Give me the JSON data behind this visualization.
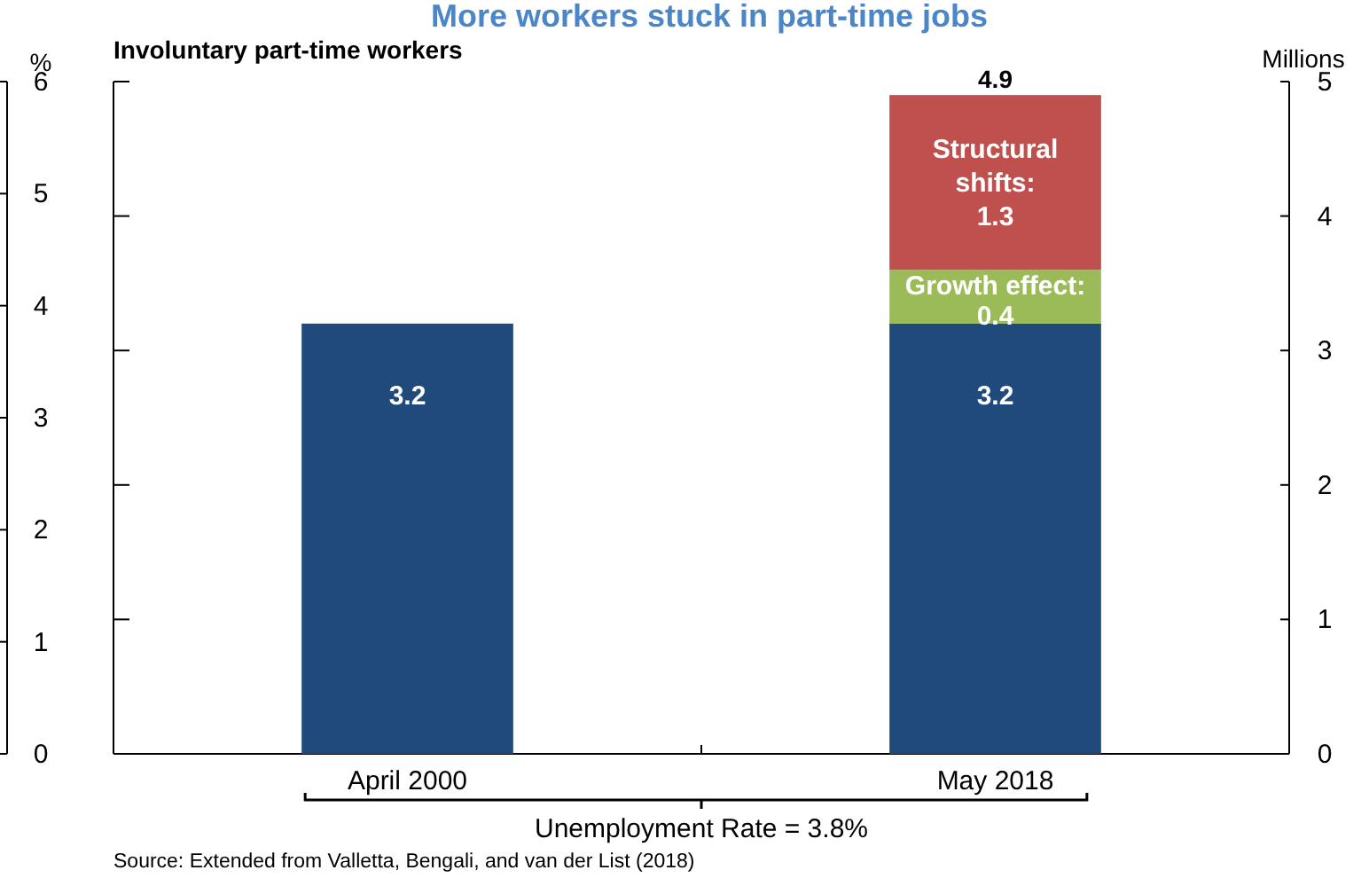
{
  "chart_data": {
    "type": "bar",
    "title": "More workers stuck in part-time jobs",
    "subtitle": "Involuntary part-time workers",
    "ylabel": "%",
    "y2label": "Millions",
    "categories": [
      "April 2000",
      "May 2018"
    ],
    "stacked": true,
    "series": [
      {
        "color": "#214a7c",
        "values": [
          3.2,
          3.2
        ],
        "axis": "y2"
      },
      {
        "name": "Growth effect:",
        "color": "#9bbb59",
        "values": [
          null,
          0.4
        ],
        "axis": "y2"
      },
      {
        "name": "Structural shifts:",
        "color": "#c0504d",
        "values": [
          null,
          1.3
        ],
        "axis": "y2"
      }
    ],
    "data_labels": true,
    "totals": [
      null,
      "4.9"
    ],
    "ylim": [
      0,
      6
    ],
    "yticks": [
      0,
      1,
      2,
      3,
      4,
      5,
      6
    ],
    "y2lim": [
      0,
      5
    ],
    "y2ticks": [
      0,
      1,
      2,
      3,
      4,
      5
    ],
    "annotations": [
      "Unemployment Rate = 3.8%",
      "Source: Extended from Valletta, Bengali, and van der List (2018)"
    ]
  }
}
